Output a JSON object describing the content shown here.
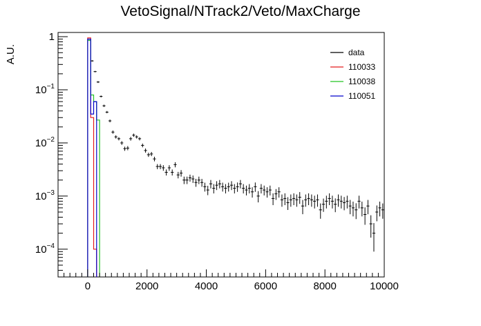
{
  "window": {
    "width": 696,
    "height": 472
  },
  "title": "VetoSignal/NTrack2/Veto/MaxCharge",
  "chart_data": {
    "type": "histogram",
    "title": "VetoSignal/NTrack2/Veto/MaxCharge",
    "xlabel": "",
    "ylabel": "A.U.",
    "xlim": [
      -1000,
      10000
    ],
    "ylim": [
      3e-05,
      1.2
    ],
    "yscale": "log",
    "grid": false,
    "legend_position": "top-right",
    "x_ticks": [
      "0",
      "2000",
      "4000",
      "6000",
      "8000",
      "10000"
    ],
    "y_ticks": [
      {
        "base": "1",
        "exp": ""
      },
      {
        "base": "10",
        "exp": "−1"
      },
      {
        "base": "10",
        "exp": "−2"
      },
      {
        "base": "10",
        "exp": "−3"
      },
      {
        "base": "10",
        "exp": "−4"
      }
    ],
    "legend": [
      {
        "label": "data",
        "color": "#000000"
      },
      {
        "label": "110033",
        "color": "#e31a1c"
      },
      {
        "label": "110038",
        "color": "#22c322"
      },
      {
        "label": "110051",
        "color": "#0000cc"
      }
    ],
    "data": {
      "name": "data",
      "bin_width": 100,
      "x": [
        150,
        250,
        350,
        450,
        550,
        650,
        750,
        850,
        950,
        1050,
        1150,
        1250,
        1350,
        1450,
        1550,
        1650,
        1750,
        1850,
        1950,
        2050,
        2150,
        2250,
        2350,
        2450,
        2550,
        2650,
        2750,
        2850,
        2950,
        3050,
        3150,
        3250,
        3350,
        3450,
        3550,
        3650,
        3750,
        3850,
        3950,
        4050,
        4150,
        4250,
        4350,
        4450,
        4550,
        4650,
        4750,
        4850,
        4950,
        5050,
        5150,
        5250,
        5350,
        5450,
        5550,
        5650,
        5750,
        5850,
        5950,
        6050,
        6150,
        6250,
        6350,
        6450,
        6550,
        6650,
        6750,
        6850,
        6950,
        7050,
        7150,
        7250,
        7350,
        7450,
        7550,
        7650,
        7750,
        7850,
        7950,
        8050,
        8150,
        8250,
        8350,
        8450,
        8550,
        8650,
        8750,
        8850,
        8950,
        9050,
        9150,
        9250,
        9350,
        9450,
        9550,
        9650,
        9750,
        9850,
        9950
      ],
      "y": [
        0.35,
        0.22,
        0.14,
        0.075,
        0.05,
        0.038,
        0.026,
        0.016,
        0.013,
        0.012,
        0.01,
        0.0078,
        0.008,
        0.012,
        0.014,
        0.013,
        0.012,
        0.009,
        0.0072,
        0.006,
        0.0062,
        0.005,
        0.0036,
        0.0036,
        0.0034,
        0.0028,
        0.0034,
        0.0028,
        0.0039,
        0.0025,
        0.0027,
        0.002,
        0.002,
        0.0022,
        0.0021,
        0.0018,
        0.002,
        0.0018,
        0.0015,
        0.0013,
        0.0017,
        0.0014,
        0.0016,
        0.0017,
        0.0015,
        0.0014,
        0.0015,
        0.0016,
        0.0014,
        0.0015,
        0.0017,
        0.0014,
        0.0013,
        0.0014,
        0.0012,
        0.0015,
        0.001,
        0.0014,
        0.0013,
        0.0012,
        0.0013,
        0.0009,
        0.0011,
        0.0012,
        0.00085,
        0.0009,
        0.00075,
        0.00085,
        0.0009,
        0.00085,
        0.00095,
        0.00065,
        0.00085,
        0.0009,
        0.00085,
        0.0008,
        0.00085,
        0.00055,
        0.0007,
        0.0008,
        0.0009,
        0.0008,
        0.0007,
        0.00085,
        0.0008,
        0.00075,
        0.0008,
        0.00065,
        0.0006,
        0.00055,
        0.0008,
        0.0006,
        0.00045,
        0.00065,
        0.0003,
        0.0002,
        0.0005,
        0.0006,
        0.00055
      ],
      "err_frac": [
        0.03,
        0.03,
        0.04,
        0.04,
        0.05,
        0.05,
        0.06,
        0.07,
        0.07,
        0.07,
        0.08,
        0.09,
        0.09,
        0.08,
        0.07,
        0.07,
        0.07,
        0.08,
        0.09,
        0.09,
        0.09,
        0.1,
        0.11,
        0.11,
        0.12,
        0.13,
        0.12,
        0.13,
        0.11,
        0.14,
        0.14,
        0.16,
        0.16,
        0.15,
        0.16,
        0.17,
        0.16,
        0.17,
        0.19,
        0.2,
        0.18,
        0.2,
        0.19,
        0.18,
        0.19,
        0.2,
        0.19,
        0.19,
        0.2,
        0.2,
        0.18,
        0.2,
        0.21,
        0.2,
        0.22,
        0.2,
        0.24,
        0.2,
        0.21,
        0.22,
        0.21,
        0.25,
        0.23,
        0.22,
        0.26,
        0.25,
        0.27,
        0.26,
        0.25,
        0.26,
        0.25,
        0.3,
        0.26,
        0.25,
        0.26,
        0.27,
        0.26,
        0.32,
        0.28,
        0.27,
        0.25,
        0.27,
        0.29,
        0.26,
        0.27,
        0.28,
        0.27,
        0.3,
        0.31,
        0.33,
        0.27,
        0.31,
        0.36,
        0.3,
        0.45,
        0.55,
        0.33,
        0.31,
        0.32
      ]
    },
    "mc_series": [
      {
        "name": "110033",
        "color": "#e31a1c",
        "edges": [
          0,
          100,
          200,
          300
        ],
        "values": [
          0.95,
          0.03,
          0.0001
        ]
      },
      {
        "name": "110038",
        "color": "#22c322",
        "edges": [
          0,
          100,
          200,
          300,
          400
        ],
        "values": [
          0.85,
          0.08,
          0.06,
          0.027
        ]
      },
      {
        "name": "110051",
        "color": "#0000cc",
        "edges": [
          0,
          100,
          200,
          300
        ],
        "values": [
          0.9,
          0.035,
          0.06
        ]
      }
    ]
  }
}
